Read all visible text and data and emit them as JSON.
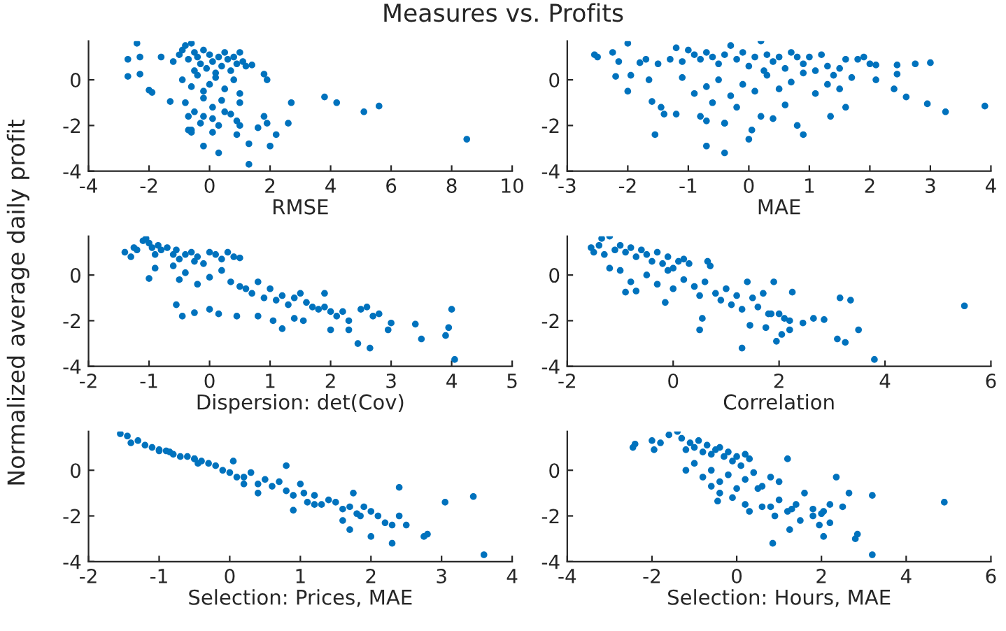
{
  "chart_data": [
    {
      "type": "scatter",
      "title": "Measures vs. Profits",
      "xlabel": "RMSE",
      "xlim": [
        -4,
        10
      ],
      "xticks": [
        -4,
        -2,
        0,
        2,
        4,
        6,
        8,
        10
      ],
      "ylim": [
        -4,
        1.7
      ],
      "yticks": [
        -4,
        -2,
        0
      ],
      "marker": "circle",
      "grid": false,
      "legend": false,
      "series": [
        {
          "color": "#0072bd",
          "x": [
            -2.7,
            -2.7,
            -2.4,
            -2.3,
            -2.3,
            -2.0,
            -1.9,
            -1.6,
            -1.3,
            -1.2,
            -1.0,
            -0.9,
            -0.8,
            -0.7,
            -0.6,
            -0.5,
            -0.5,
            -0.4,
            -0.3,
            -0.2,
            -0.1,
            0.0,
            0.1,
            0.2,
            0.3,
            0.4,
            0.5,
            0.6,
            0.7,
            0.8,
            0.9,
            1.0,
            1.1,
            1.2,
            -0.9,
            -0.6,
            -0.4,
            -0.2,
            0.0,
            0.2,
            0.5,
            0.8,
            1.0,
            -0.8,
            -0.5,
            -0.2,
            0.1,
            0.4,
            0.7,
            1.0,
            -0.7,
            -0.3,
            0.1,
            0.5,
            0.9,
            -0.6,
            -0.2,
            0.3,
            -0.2,
            0.3,
            1.3,
            1.3,
            2.0,
            2.2,
            2.6,
            2.7,
            3.8,
            4.2,
            5.1,
            5.6,
            8.5,
            1.9,
            1.8,
            1.4,
            1.8,
            1.9,
            1.6,
            1.0,
            0.9,
            0.1,
            -0.6,
            -0.7
          ],
          "values": [
            0.9,
            0.15,
            1.6,
            0.25,
            1.0,
            -0.45,
            -0.55,
            1.0,
            -0.95,
            0.8,
            1.1,
            1.3,
            1.5,
            0.9,
            1.6,
            1.2,
            0.4,
            1.0,
            0.7,
            1.3,
            0.5,
            1.1,
            0.8,
            0.3,
            1.0,
            0.6,
            1.2,
            0.9,
            0.4,
            1.0,
            0.7,
            1.2,
            0.8,
            0.6,
            0.0,
            -0.3,
            0.2,
            -0.5,
            -0.2,
            0.1,
            -0.4,
            0.0,
            -0.6,
            -1.0,
            -1.4,
            -0.8,
            -1.2,
            -0.9,
            -1.5,
            -1.0,
            -1.6,
            -1.9,
            -1.7,
            -1.4,
            -1.8,
            -2.2,
            -1.6,
            -2.0,
            -2.9,
            -3.2,
            -3.7,
            -2.8,
            -2.9,
            -2.4,
            -1.9,
            -1.0,
            -0.75,
            -1.0,
            -1.4,
            -1.15,
            -2.6,
            0.0,
            0.25,
            0.65,
            -1.6,
            -1.9,
            -2.1,
            -2.0,
            -2.4,
            -2.3,
            -2.3,
            -2.2
          ]
        }
      ]
    },
    {
      "type": "scatter",
      "xlabel": "MAE",
      "xlim": [
        -3,
        4
      ],
      "xticks": [
        -3,
        -2,
        -1,
        0,
        1,
        2,
        3,
        4
      ],
      "ylim": [
        -4,
        1.7
      ],
      "yticks": [
        -4,
        -2,
        0
      ],
      "marker": "circle",
      "grid": false,
      "legend": false,
      "series": [
        {
          "color": "#0072bd",
          "x": [
            -2.55,
            -2.5,
            -2.25,
            -2.2,
            -2.15,
            -2.0,
            -2.0,
            -1.95,
            -1.8,
            -1.7,
            -1.65,
            -1.6,
            -1.5,
            -1.45,
            -1.4,
            -1.3,
            -1.2,
            -1.1,
            -1.0,
            -0.9,
            -0.8,
            -0.7,
            -0.6,
            -0.5,
            -0.4,
            -0.3,
            -0.2,
            -0.1,
            0.0,
            0.1,
            0.2,
            0.25,
            0.3,
            0.4,
            0.5,
            0.6,
            0.7,
            0.8,
            0.9,
            1.0,
            1.1,
            1.2,
            1.3,
            1.4,
            1.5,
            1.6,
            1.7,
            1.8,
            1.9,
            2.0,
            2.1,
            -1.1,
            -0.9,
            -0.7,
            -0.5,
            -0.3,
            -0.1,
            0.1,
            0.3,
            0.5,
            0.7,
            0.9,
            1.1,
            1.3,
            1.5,
            -1.2,
            -0.8,
            -0.6,
            -0.4,
            -0.2,
            0.2,
            0.6,
            0.8,
            -0.7,
            -0.4,
            0.0,
            0.05,
            0.4,
            0.9,
            1.35,
            1.6,
            2.1,
            2.45,
            2.45,
            2.4,
            2.6,
            2.75,
            2.95,
            3.0,
            3.25,
            3.9,
            -1.55,
            -0.7,
            -0.4
          ],
          "values": [
            1.1,
            1.0,
            1.2,
            0.15,
            0.8,
            1.6,
            -0.5,
            0.2,
            0.75,
            0.9,
            0.0,
            -0.95,
            0.7,
            -1.2,
            -1.5,
            0.9,
            1.4,
            0.8,
            1.3,
            1.1,
            0.9,
            1.2,
            1.0,
            0.7,
            1.1,
            1.5,
            0.9,
            1.2,
            0.6,
            1.0,
            1.7,
            0.4,
            1.1,
            0.8,
            1.0,
            0.5,
            1.2,
            1.0,
            0.7,
            1.0,
            0.4,
            1.1,
            0.6,
            0.2,
            0.5,
            0.9,
            0.1,
            0.9,
            1.0,
            0.7,
            0.0,
            0.1,
            -0.6,
            -0.3,
            0.0,
            -0.7,
            -0.2,
            -0.5,
            0.2,
            -0.4,
            -0.1,
            0.3,
            -0.6,
            -0.2,
            -0.4,
            -1.5,
            -1.6,
            -1.0,
            -1.9,
            -1.2,
            -1.6,
            -1.1,
            -2.0,
            -2.9,
            -1.9,
            -2.6,
            -2.2,
            -1.7,
            -2.4,
            -1.6,
            -1.2,
            0.65,
            0.65,
            0.25,
            -0.4,
            -0.75,
            0.7,
            -1.05,
            0.75,
            -1.4,
            -1.15,
            -2.4,
            -1.8,
            -3.2
          ]
        }
      ]
    },
    {
      "type": "scatter",
      "xlabel": "Dispersion: det(Cov)",
      "ylabel": "Normalized average daily profit",
      "xlim": [
        -2,
        5
      ],
      "xticks": [
        -2,
        -1,
        0,
        1,
        2,
        3,
        4,
        5
      ],
      "ylim": [
        -4,
        1.7
      ],
      "yticks": [
        -4,
        -2,
        0
      ],
      "marker": "circle",
      "grid": false,
      "legend": false,
      "series": [
        {
          "color": "#0072bd",
          "x": [
            -1.4,
            -1.3,
            -1.25,
            -1.2,
            -1.1,
            -1.05,
            -1.0,
            -0.95,
            -0.9,
            -0.85,
            -0.8,
            -0.7,
            -0.6,
            -0.55,
            -0.5,
            -0.4,
            -0.3,
            -0.25,
            -0.2,
            -0.1,
            0.0,
            0.1,
            0.2,
            0.3,
            0.4,
            0.5,
            -1.0,
            -0.9,
            -0.6,
            -0.5,
            -0.4,
            -0.2,
            0.0,
            0.2,
            0.35,
            0.5,
            0.6,
            0.7,
            0.8,
            0.9,
            1.0,
            1.1,
            1.2,
            1.3,
            1.4,
            1.5,
            1.6,
            1.7,
            1.8,
            1.9,
            2.0,
            2.1,
            2.2,
            2.3,
            2.5,
            2.6,
            2.7,
            2.8,
            -0.55,
            -0.45,
            -0.25,
            0.0,
            0.15,
            0.45,
            0.8,
            1.05,
            1.2,
            1.4,
            1.55,
            2.0,
            2.3,
            2.45,
            2.65,
            2.95,
            3.0,
            3.4,
            3.5,
            3.9,
            3.95,
            4.0,
            4.05,
            1.9
          ],
          "values": [
            1.0,
            0.8,
            1.2,
            1.1,
            1.5,
            1.6,
            1.4,
            1.2,
            0.9,
            1.3,
            1.1,
            1.2,
            0.9,
            1.1,
            0.7,
            0.9,
            1.0,
            0.6,
            0.8,
            0.5,
            1.0,
            0.9,
            0.7,
            1.0,
            0.8,
            0.75,
            -0.15,
            0.3,
            0.4,
            -0.2,
            0.1,
            -0.4,
            -0.1,
            0.2,
            -0.3,
            -0.5,
            -0.6,
            -0.8,
            -0.3,
            -1.0,
            -0.6,
            -1.1,
            -0.9,
            -1.3,
            -1.0,
            -0.8,
            -1.2,
            -1.4,
            -1.5,
            -0.8,
            -1.6,
            -1.8,
            -1.6,
            -2.0,
            -1.5,
            -1.4,
            -1.8,
            -1.7,
            -1.3,
            -1.8,
            -1.65,
            -1.5,
            -1.7,
            -1.8,
            -1.8,
            -2.0,
            -2.35,
            -1.9,
            -2.0,
            -2.4,
            -2.4,
            -3.0,
            -3.2,
            -2.4,
            -2.1,
            -2.15,
            -2.8,
            -2.65,
            -2.3,
            -1.5,
            -3.7,
            -1.4
          ]
        }
      ]
    },
    {
      "type": "scatter",
      "xlabel": "Correlation",
      "xlim": [
        -2,
        6
      ],
      "xticks": [
        -2,
        0,
        2,
        4,
        6
      ],
      "ylim": [
        -4,
        1.7
      ],
      "yticks": [
        -4,
        -2,
        0
      ],
      "marker": "circle",
      "grid": false,
      "legend": false,
      "series": [
        {
          "color": "#0072bd",
          "x": [
            -1.55,
            -1.5,
            -1.4,
            -1.35,
            -1.3,
            -1.2,
            -1.1,
            -1.0,
            -0.9,
            -0.8,
            -0.7,
            -0.6,
            -0.5,
            -0.4,
            -0.3,
            -0.2,
            -0.1,
            0.0,
            0.1,
            0.2,
            0.3,
            -1.2,
            -1.0,
            -0.8,
            -0.7,
            -0.5,
            -0.3,
            -0.1,
            0.0,
            0.2,
            0.4,
            0.5,
            0.6,
            0.7,
            0.8,
            0.9,
            1.0,
            1.1,
            1.2,
            1.3,
            1.4,
            1.5,
            1.6,
            1.7,
            1.8,
            1.9,
            2.0,
            2.1,
            2.2,
            2.25,
            2.45,
            2.65,
            2.85,
            3.1,
            3.15,
            3.25,
            3.35,
            3.5,
            3.8,
            5.5,
            0.5,
            0.55,
            1.3,
            1.45,
            1.75,
            1.95,
            2.05,
            2.2,
            -0.9,
            -0.15,
            0.65,
            1.85
          ],
          "values": [
            1.2,
            1.0,
            1.3,
            1.6,
            0.9,
            1.7,
            1.1,
            1.3,
            1.0,
            1.2,
            0.8,
            1.1,
            0.9,
            0.6,
            1.0,
            0.5,
            0.8,
            0.3,
            0.6,
            0.7,
            0.5,
            0.3,
            0.2,
            -0.3,
            -0.7,
            0.0,
            -0.4,
            0.2,
            -0.6,
            -0.2,
            -0.5,
            -0.9,
            -0.3,
            0.4,
            -0.8,
            -1.1,
            -0.6,
            -1.3,
            -0.9,
            -1.5,
            -0.3,
            -1.0,
            -1.4,
            -0.8,
            -1.7,
            -0.3,
            -1.7,
            -1.9,
            -2.0,
            -0.75,
            -2.1,
            -1.9,
            -1.95,
            -2.8,
            -1.0,
            -2.95,
            -1.1,
            -2.4,
            -3.7,
            -1.35,
            -2.4,
            -1.9,
            -3.2,
            -2.2,
            -2.3,
            -2.9,
            -2.6,
            -2.4,
            -0.75,
            -1.2,
            0.6,
            -1.7
          ]
        }
      ]
    },
    {
      "type": "scatter",
      "xlabel": "Selection: Prices, MAE",
      "xlim": [
        -2,
        4
      ],
      "xticks": [
        -2,
        -1,
        0,
        1,
        2,
        3,
        4
      ],
      "ylim": [
        -4,
        1.7
      ],
      "yticks": [
        -4,
        -2,
        0
      ],
      "marker": "circle",
      "grid": false,
      "legend": false,
      "series": [
        {
          "color": "#0072bd",
          "x": [
            -1.55,
            -1.45,
            -1.4,
            -1.3,
            -1.2,
            -1.1,
            -1.0,
            -0.9,
            -0.85,
            -0.8,
            -0.7,
            -0.6,
            -0.5,
            -0.45,
            -0.4,
            -0.3,
            -0.2,
            -0.1,
            0.0,
            0.05,
            0.1,
            0.2,
            0.3,
            0.4,
            0.5,
            0.6,
            0.7,
            0.8,
            0.8,
            0.9,
            1.0,
            1.05,
            1.1,
            1.2,
            1.3,
            1.4,
            1.5,
            1.6,
            1.7,
            1.75,
            1.8,
            1.9,
            2.0,
            2.1,
            2.2,
            2.3,
            2.4,
            2.4,
            2.5,
            2.75,
            2.8,
            3.05,
            3.45,
            3.6,
            0.4,
            0.9,
            1.2,
            1.6,
            1.85,
            2.0,
            2.3,
            -1.0,
            -0.5,
            0.2,
            1.7
          ],
          "values": [
            1.6,
            1.5,
            1.2,
            1.3,
            1.1,
            1.0,
            0.9,
            0.85,
            0.8,
            0.7,
            0.6,
            0.6,
            0.5,
            0.3,
            0.4,
            0.3,
            0.2,
            0.0,
            -0.1,
            0.4,
            -0.3,
            -0.3,
            -0.1,
            -0.6,
            -0.4,
            -0.7,
            -0.5,
            -0.9,
            0.2,
            -1.1,
            -0.6,
            -1.0,
            -1.4,
            -1.1,
            -1.5,
            -1.3,
            -1.4,
            -1.7,
            -1.6,
            -1.0,
            -1.9,
            -1.6,
            -1.8,
            -2.0,
            -2.3,
            -3.2,
            -0.75,
            -2.0,
            -2.4,
            -2.9,
            -2.8,
            -1.4,
            -1.15,
            -3.7,
            -1.0,
            -1.75,
            -1.5,
            -2.2,
            -2.0,
            -2.9,
            -2.4,
            0.85,
            0.5,
            -0.6,
            -2.6
          ]
        }
      ]
    },
    {
      "type": "scatter",
      "xlabel": "Selection: Hours, MAE",
      "xlim": [
        -4,
        6
      ],
      "xticks": [
        -4,
        -2,
        0,
        2,
        4,
        6
      ],
      "ylim": [
        -4,
        1.7
      ],
      "yticks": [
        -4,
        -2,
        0
      ],
      "marker": "circle",
      "grid": false,
      "legend": false,
      "series": [
        {
          "color": "#0072bd",
          "x": [
            -2.45,
            -2.4,
            -2.0,
            -1.95,
            -1.8,
            -1.6,
            -1.4,
            -1.3,
            -1.2,
            -1.1,
            -1.0,
            -0.9,
            -0.8,
            -0.7,
            -0.6,
            -0.5,
            -0.4,
            -0.3,
            -0.2,
            -0.1,
            0.0,
            0.1,
            0.2,
            0.3,
            -1.2,
            -1.0,
            -0.8,
            -0.6,
            -0.4,
            -0.2,
            0.0,
            0.2,
            0.4,
            0.6,
            0.8,
            1.0,
            1.2,
            -0.6,
            -0.4,
            -0.1,
            0.2,
            0.5,
            0.8,
            1.0,
            1.2,
            1.4,
            1.6,
            1.8,
            2.0,
            2.2,
            2.35,
            2.5,
            2.65,
            0.3,
            0.6,
            0.9,
            1.3,
            1.5,
            1.8,
            2.05,
            2.2,
            0.85,
            1.25,
            2.05,
            2.8,
            2.85,
            3.2,
            3.2,
            4.9,
            -0.45,
            1.95
          ],
          "values": [
            1.0,
            1.15,
            1.3,
            0.9,
            1.2,
            1.55,
            1.7,
            1.4,
            0.9,
            1.2,
            1.0,
            1.3,
            0.8,
            1.1,
            0.7,
            0.9,
            1.0,
            0.6,
            0.8,
            0.4,
            0.6,
            0.2,
            0.7,
            0.5,
            0.0,
            0.3,
            -0.3,
            0.0,
            -0.5,
            -0.2,
            -0.8,
            -0.4,
            -0.1,
            -0.7,
            -0.3,
            -0.5,
            0.5,
            -0.7,
            -1.0,
            -1.2,
            -1.5,
            -0.8,
            -1.6,
            -1.3,
            -1.8,
            -1.5,
            -1.0,
            -1.7,
            -1.9,
            -1.5,
            -0.3,
            -1.6,
            -1.0,
            -1.8,
            -1.6,
            -2.0,
            -1.7,
            -2.2,
            -2.0,
            -1.8,
            -2.3,
            -3.2,
            -2.6,
            -2.9,
            -3.0,
            -2.8,
            -1.1,
            -3.7,
            -1.4,
            -1.35,
            -2.4
          ]
        }
      ]
    }
  ]
}
